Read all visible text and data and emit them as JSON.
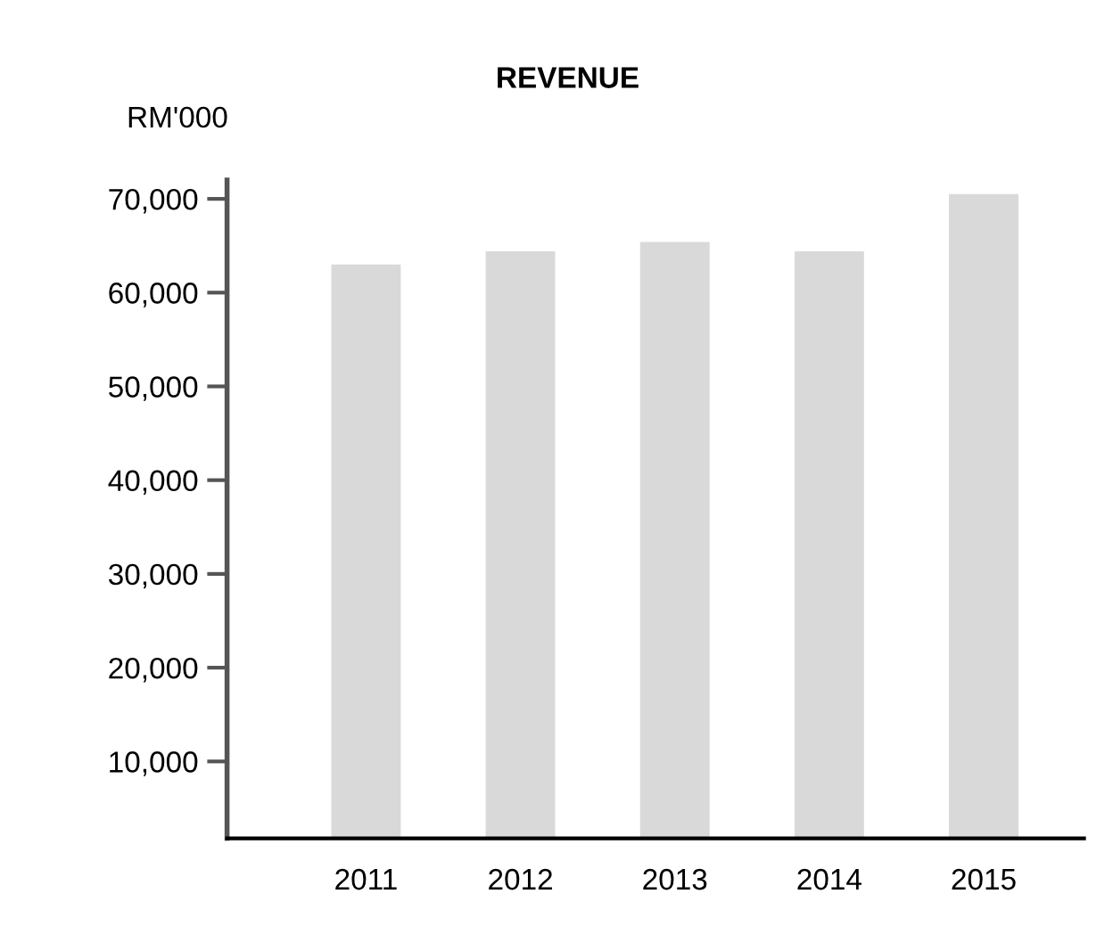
{
  "chart_data": {
    "type": "bar",
    "title": "REVENUE",
    "ylabel": "RM'000",
    "categories": [
      "2011",
      "2012",
      "2013",
      "2014",
      "2015"
    ],
    "values": [
      63000,
      64400,
      65400,
      64400,
      70500
    ],
    "color": "#d9d9d9",
    "ylim": [
      1800,
      72000
    ],
    "yticks": [
      {
        "value": 10000,
        "label": "10,000"
      },
      {
        "value": 20000,
        "label": "20,000"
      },
      {
        "value": 30000,
        "label": "30,000"
      },
      {
        "value": 40000,
        "label": "40,000"
      },
      {
        "value": 50000,
        "label": "50,000"
      },
      {
        "value": 60000,
        "label": "60,000"
      },
      {
        "value": 70000,
        "label": "70,000"
      }
    ],
    "grid": false,
    "legend": false
  }
}
